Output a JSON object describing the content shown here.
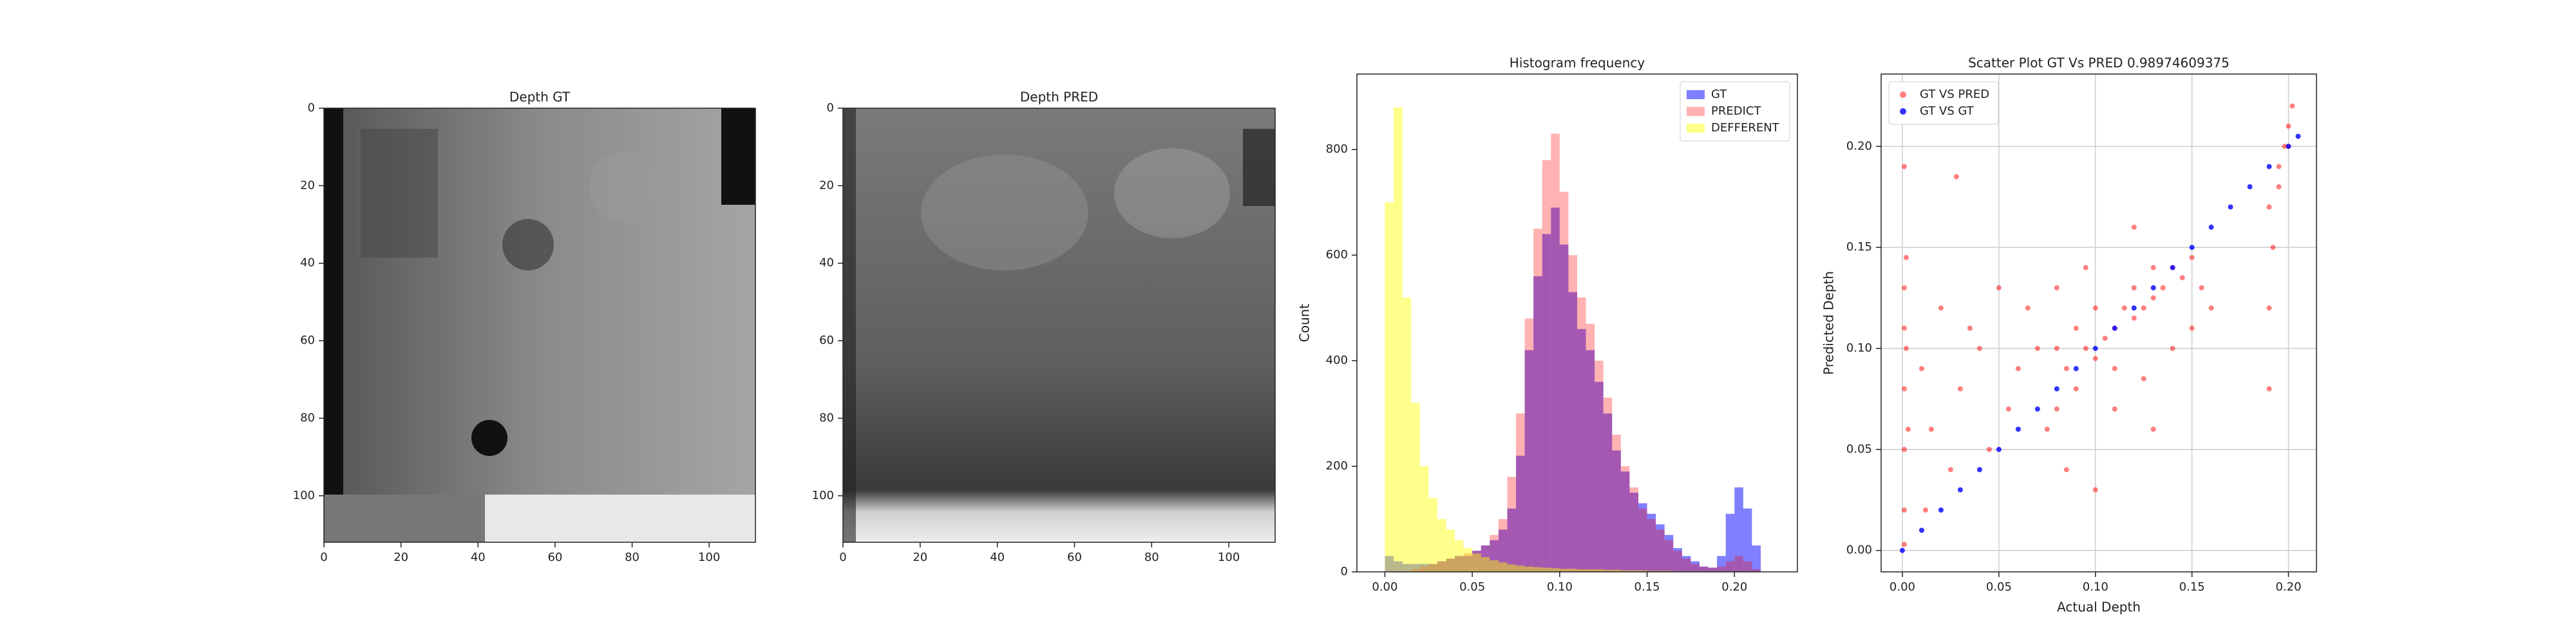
{
  "chart_data": [
    {
      "type": "image",
      "title": "Depth GT",
      "xlim": [
        0,
        112
      ],
      "ylim": [
        0,
        112
      ],
      "invert_y": true,
      "xticks": [
        0,
        20,
        40,
        60,
        80,
        100
      ],
      "yticks": [
        0,
        20,
        40,
        60,
        80,
        100
      ]
    },
    {
      "type": "image",
      "title": "Depth PRED",
      "xlim": [
        0,
        112
      ],
      "ylim": [
        0,
        112
      ],
      "invert_y": true,
      "xticks": [
        0,
        20,
        40,
        60,
        80,
        100
      ],
      "yticks": [
        0,
        20,
        40,
        60,
        80,
        100
      ]
    },
    {
      "type": "histogram",
      "title": "Histogram frequency",
      "y_label": "Count",
      "xlim": [
        -0.016,
        0.236
      ],
      "ylim": [
        0,
        943
      ],
      "xticks": [
        {
          "value": 0,
          "label": "0.00"
        },
        {
          "value": 0.05,
          "label": "0.05"
        },
        {
          "value": 0.1,
          "label": "0.10"
        },
        {
          "value": 0.15,
          "label": "0.15"
        },
        {
          "value": 0.2,
          "label": "0.20"
        }
      ],
      "yticks": [
        0,
        200,
        400,
        600,
        800
      ],
      "legend": "upper right",
      "bins": [
        0,
        0.005,
        0.01,
        0.015,
        0.02,
        0.025,
        0.03,
        0.035,
        0.04,
        0.045,
        0.05,
        0.055,
        0.06,
        0.065,
        0.07,
        0.075,
        0.08,
        0.085,
        0.09,
        0.095,
        0.1,
        0.105,
        0.11,
        0.115,
        0.12,
        0.125,
        0.13,
        0.135,
        0.14,
        0.145,
        0.15,
        0.155,
        0.16,
        0.165,
        0.17,
        0.175,
        0.18,
        0.185,
        0.19,
        0.195,
        0.2,
        0.205,
        0.21,
        0.215
      ],
      "series": [
        {
          "name": "GT",
          "color": "#0000ff",
          "opacity": 0.5,
          "values": [
            30,
            20,
            15,
            15,
            15,
            15,
            20,
            25,
            30,
            30,
            40,
            50,
            60,
            80,
            120,
            220,
            420,
            560,
            640,
            690,
            620,
            530,
            460,
            420,
            360,
            300,
            230,
            190,
            150,
            130,
            110,
            90,
            70,
            45,
            30,
            20,
            10,
            8,
            30,
            110,
            160,
            120,
            50
          ]
        },
        {
          "name": "PREDICT",
          "color": "#ff0000",
          "opacity": 0.3,
          "values": [
            0,
            0,
            0,
            5,
            10,
            15,
            20,
            25,
            30,
            35,
            40,
            50,
            70,
            100,
            180,
            300,
            480,
            650,
            780,
            830,
            720,
            600,
            520,
            470,
            400,
            330,
            260,
            200,
            160,
            120,
            100,
            80,
            60,
            40,
            25,
            15,
            10,
            8,
            10,
            20,
            30,
            20,
            5
          ]
        },
        {
          "name": "DEFFERENT",
          "color": "#ffff00",
          "opacity": 0.45,
          "values": [
            700,
            880,
            520,
            320,
            200,
            140,
            100,
            80,
            60,
            45,
            35,
            28,
            22,
            18,
            14,
            12,
            10,
            9,
            8,
            7,
            6,
            6,
            5,
            5,
            5,
            4,
            4,
            3,
            3,
            3,
            2,
            2,
            2,
            1,
            1,
            1,
            1,
            0,
            0,
            0,
            0,
            0,
            0
          ]
        }
      ]
    },
    {
      "type": "scatter",
      "title": "Scatter Plot GT Vs PRED 0.98974609375",
      "x_label": "Actual Depth",
      "y_label": "Predicted Depth",
      "xlim": [
        -0.011,
        0.2145
      ],
      "ylim": [
        -0.0106,
        0.2358
      ],
      "grid": true,
      "legend": "upper left",
      "xticks": [
        {
          "value": 0,
          "label": "0.00"
        },
        {
          "value": 0.05,
          "label": "0.05"
        },
        {
          "value": 0.1,
          "label": "0.10"
        },
        {
          "value": 0.15,
          "label": "0.15"
        },
        {
          "value": 0.2,
          "label": "0.20"
        }
      ],
      "yticks": [
        {
          "value": 0,
          "label": "0.00"
        },
        {
          "value": 0.05,
          "label": "0.05"
        },
        {
          "value": 0.1,
          "label": "0.10"
        },
        {
          "value": 0.15,
          "label": "0.15"
        },
        {
          "value": 0.2,
          "label": "0.20"
        }
      ],
      "series": [
        {
          "name": "GT VS PRED",
          "color": "#ff0000",
          "opacity": 0.5,
          "x": [
            0.001,
            0.001,
            0.001,
            0.001,
            0.001,
            0.001,
            0.002,
            0.001,
            0.003,
            0.002,
            0.01,
            0.02,
            0.03,
            0.04,
            0.05,
            0.06,
            0.015,
            0.025,
            0.035,
            0.055,
            0.045,
            0.065,
            0.028,
            0.07,
            0.012,
            0.075,
            0.08,
            0.08,
            0.085,
            0.09,
            0.09,
            0.095,
            0.1,
            0.1,
            0.105,
            0.11,
            0.11,
            0.115,
            0.12,
            0.12,
            0.125,
            0.13,
            0.13,
            0.135,
            0.14,
            0.145,
            0.15,
            0.155,
            0.16,
            0.085,
            0.1,
            0.11,
            0.14,
            0.15,
            0.12,
            0.095,
            0.08,
            0.125,
            0.13,
            0.19,
            0.19,
            0.192,
            0.195,
            0.198,
            0.2,
            0.202,
            0.195,
            0.19,
            0.2
          ],
          "values": [
            0.003,
            0.02,
            0.05,
            0.08,
            0.11,
            0.13,
            0.145,
            0.19,
            0.06,
            0.1,
            0.09,
            0.12,
            0.08,
            0.1,
            0.13,
            0.09,
            0.06,
            0.04,
            0.11,
            0.07,
            0.05,
            0.12,
            0.185,
            0.1,
            0.02,
            0.06,
            0.07,
            0.1,
            0.09,
            0.08,
            0.11,
            0.1,
            0.095,
            0.12,
            0.105,
            0.11,
            0.09,
            0.12,
            0.115,
            0.13,
            0.12,
            0.125,
            0.14,
            0.13,
            0.14,
            0.135,
            0.145,
            0.13,
            0.12,
            0.04,
            0.03,
            0.07,
            0.1,
            0.11,
            0.16,
            0.14,
            0.13,
            0.085,
            0.06,
            0.08,
            0.12,
            0.15,
            0.18,
            0.2,
            0.21,
            0.22,
            0.19,
            0.17,
            0.2
          ]
        },
        {
          "name": "GT VS GT",
          "color": "#0000ff",
          "opacity": 0.8,
          "x": [
            0,
            0.01,
            0.02,
            0.03,
            0.04,
            0.05,
            0.06,
            0.07,
            0.08,
            0.09,
            0.1,
            0.11,
            0.12,
            0.13,
            0.14,
            0.15,
            0.16,
            0.17,
            0.18,
            0.19,
            0.2,
            0.205
          ],
          "values": [
            0,
            0.01,
            0.02,
            0.03,
            0.04,
            0.05,
            0.06,
            0.07,
            0.08,
            0.09,
            0.1,
            0.11,
            0.12,
            0.13,
            0.14,
            0.15,
            0.16,
            0.17,
            0.18,
            0.19,
            0.2,
            0.205
          ]
        }
      ]
    }
  ]
}
